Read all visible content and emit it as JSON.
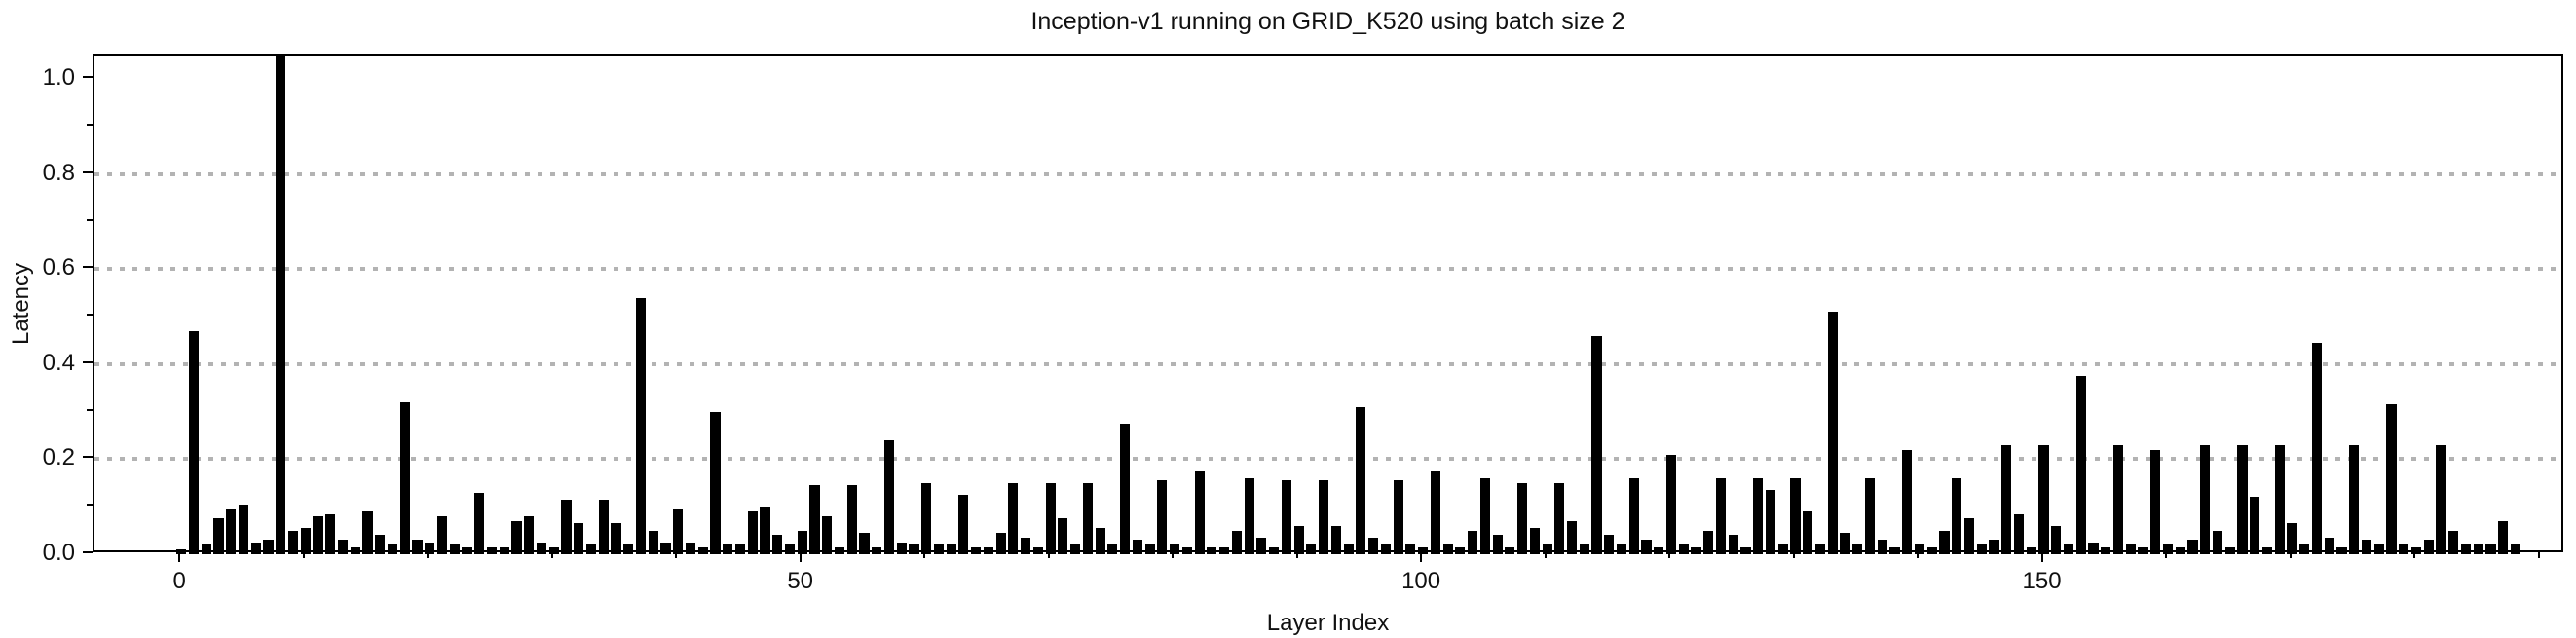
{
  "chart_data": {
    "type": "bar",
    "title": "Inception-v1 running on GRID_K520 using batch size 2",
    "xlabel": "Layer Index",
    "ylabel": "Latency",
    "ylim": [
      0,
      1.05
    ],
    "xlim": [
      -7,
      192
    ],
    "yticks": [
      0.0,
      0.2,
      0.4,
      0.6,
      0.8,
      1.0
    ],
    "ytick_labels": [
      "0.0",
      "0.2",
      "0.4",
      "0.6",
      "0.8",
      "1.0"
    ],
    "y_minor_step": 0.1,
    "gridlines_y": [
      0.2,
      0.4,
      0.6,
      0.8
    ],
    "grid_style": "dotted",
    "grid_color": "#b3b3b3",
    "xticks_major": [
      0,
      50,
      100,
      150
    ],
    "xtick_labels": [
      "0",
      "50",
      "100",
      "150"
    ],
    "x_minor_step": 10,
    "bar_color": "#000000",
    "clipped_at_top_index": 8,
    "values": [
      0.01,
      0.47,
      0.02,
      0.075,
      0.095,
      0.105,
      0.025,
      0.03,
      1.05,
      0.05,
      0.055,
      0.08,
      0.085,
      0.03,
      0.015,
      0.09,
      0.04,
      0.02,
      0.32,
      0.03,
      0.025,
      0.08,
      0.02,
      0.015,
      0.13,
      0.015,
      0.015,
      0.07,
      0.08,
      0.025,
      0.015,
      0.115,
      0.065,
      0.02,
      0.115,
      0.065,
      0.02,
      0.54,
      0.05,
      0.025,
      0.095,
      0.025,
      0.015,
      0.3,
      0.02,
      0.02,
      0.09,
      0.1,
      0.04,
      0.02,
      0.05,
      0.145,
      0.08,
      0.015,
      0.145,
      0.045,
      0.015,
      0.24,
      0.025,
      0.02,
      0.15,
      0.02,
      0.02,
      0.125,
      0.015,
      0.015,
      0.045,
      0.15,
      0.035,
      0.015,
      0.15,
      0.075,
      0.02,
      0.15,
      0.055,
      0.02,
      0.275,
      0.03,
      0.02,
      0.155,
      0.02,
      0.015,
      0.175,
      0.015,
      0.015,
      0.05,
      0.16,
      0.035,
      0.015,
      0.155,
      0.06,
      0.02,
      0.155,
      0.06,
      0.02,
      0.31,
      0.035,
      0.02,
      0.155,
      0.02,
      0.015,
      0.175,
      0.02,
      0.015,
      0.05,
      0.16,
      0.04,
      0.015,
      0.15,
      0.055,
      0.02,
      0.15,
      0.07,
      0.02,
      0.46,
      0.04,
      0.02,
      0.16,
      0.03,
      0.015,
      0.21,
      0.02,
      0.015,
      0.05,
      0.16,
      0.04,
      0.015,
      0.16,
      0.135,
      0.02,
      0.16,
      0.09,
      0.02,
      0.51,
      0.045,
      0.02,
      0.16,
      0.03,
      0.015,
      0.22,
      0.02,
      0.015,
      0.05,
      0.16,
      0.075,
      0.02,
      0.03,
      0.23,
      0.085,
      0.015,
      0.23,
      0.06,
      0.02,
      0.375,
      0.025,
      0.015,
      0.23,
      0.02,
      0.015,
      0.22,
      0.02,
      0.015,
      0.03,
      0.23,
      0.05,
      0.015,
      0.23,
      0.12,
      0.015,
      0.23,
      0.065,
      0.02,
      0.445,
      0.035,
      0.015,
      0.23,
      0.03,
      0.02,
      0.315,
      0.02,
      0.015,
      0.03,
      0.23,
      0.05,
      0.02,
      0.02,
      0.02,
      0.07,
      0.02
    ]
  }
}
